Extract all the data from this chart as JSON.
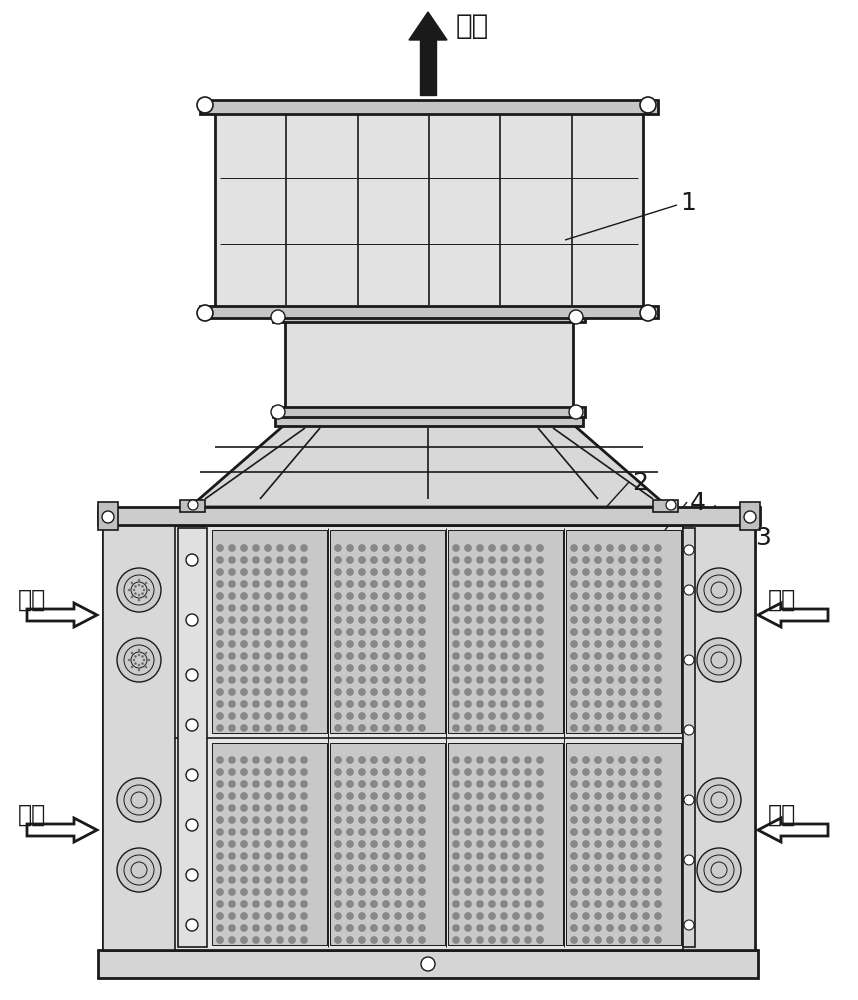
{
  "bg_color": "#ffffff",
  "line_color": "#1a1a1a",
  "labels": {
    "chu_feng": "出风",
    "jin_feng": "进风",
    "num1": "1",
    "num2": "2",
    "num3": "3",
    "num4": "4"
  },
  "figsize": [
    8.58,
    10.0
  ],
  "dpi": 100
}
